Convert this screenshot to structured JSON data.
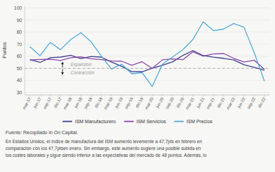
{
  "chart_data": {
    "type": "line",
    "y_label": "Puntos",
    "ylim": [
      28,
      102
    ],
    "yticks": [
      30,
      40,
      50,
      60,
      70,
      80,
      90,
      100
    ],
    "grid": true,
    "legend": "bottom",
    "threshold": 50,
    "annotations": [
      "Expansión",
      "Contracción"
    ],
    "source": "Fuente: Recopilado In On Capital.",
    "note": "En Estados Unidos, el índice de manufactura del ISM aumentó levemente a 47,7pts en febrero en\ncomparación con los 47,7ptsen enero. Sin embargo, este aumento sugiere una posible subida en\nlos costes laborales y sigue siendo inferior a las expectativas del mercado de 48 puntos. Además, lo",
    "categories": [
      "mar-17",
      "jun-17",
      "sep-17",
      "dic-17",
      "mar-18",
      "jun-18",
      "sep-18",
      "dic-18",
      "mar-19",
      "jun-19",
      "sep-19",
      "dic-19",
      "mar-20",
      "jun-20",
      "sep-20",
      "dic-20",
      "mar-21",
      "jun-21",
      "sep-21",
      "dic-21",
      "mar-22",
      "jun-22",
      "sep-22",
      "dic-22"
    ],
    "series": [
      {
        "name": "ISM Manufacturero",
        "color": "#3d3d8f",
        "values": [
          57.2,
          54.9,
          58.8,
          59.3,
          60.8,
          58.1,
          59.8,
          59.3,
          55.3,
          51.7,
          47.3,
          47.2,
          50.1,
          52.6,
          55.4,
          60.7,
          64.7,
          60.6,
          59.2,
          58.3,
          57.0,
          53.0,
          50.9,
          48.4
        ]
      },
      {
        "name": "ISM Servicios",
        "color": "#8844aa",
        "values": [
          57.0,
          57.4,
          57.5,
          56.5,
          58.8,
          59.5,
          58.0,
          57.3,
          56.1,
          55.9,
          52.6,
          55.5,
          49.9,
          57.1,
          57.8,
          57.2,
          63.7,
          60.1,
          61.9,
          62.3,
          58.3,
          55.3,
          56.7,
          49.2
        ]
      },
      {
        "name": "ISM Precios",
        "color": "#4fa8d8",
        "values": [
          68.0,
          60.5,
          71.5,
          65.5,
          73.7,
          79.5,
          72.1,
          60.2,
          49.4,
          53.5,
          45.5,
          46.5,
          35.0,
          53.5,
          59.5,
          65.4,
          74.0,
          88.5,
          81.2,
          82.5,
          87.1,
          84.0,
          63.0,
          39.4
        ]
      }
    ]
  }
}
